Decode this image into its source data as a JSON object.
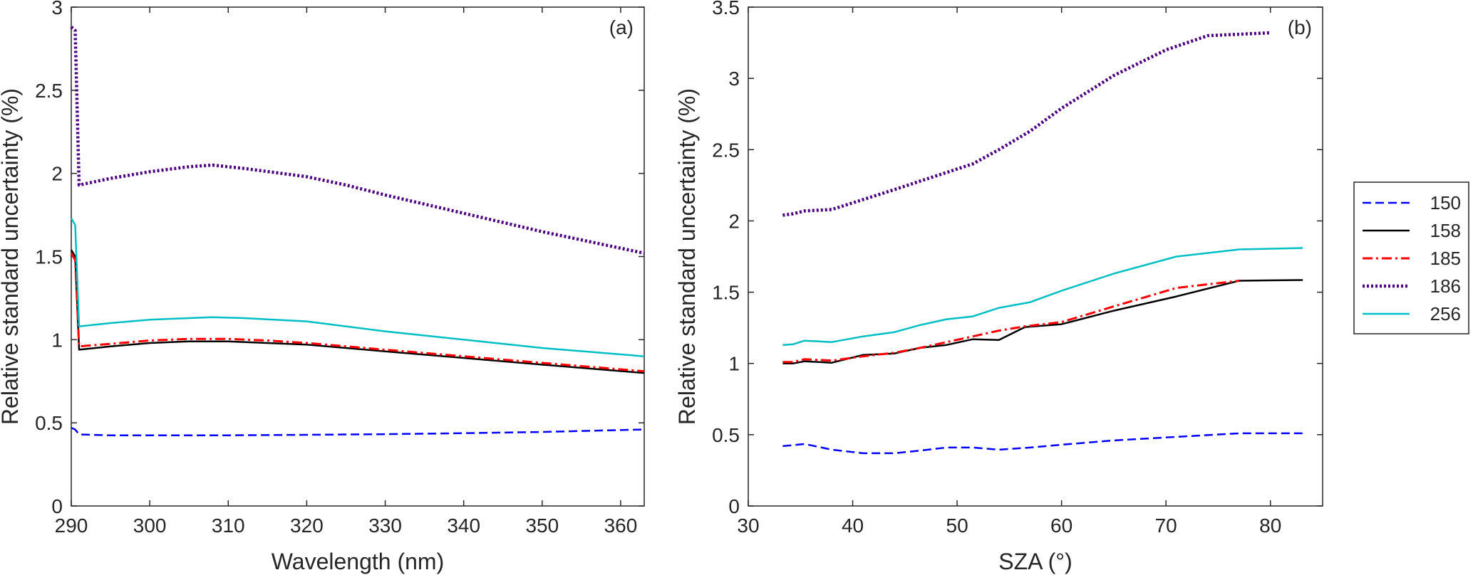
{
  "figure": {
    "legend_entries": [
      {
        "label": "150",
        "color": "#0000FF",
        "dash": "dashed"
      },
      {
        "label": "158",
        "color": "#000000",
        "dash": "solid"
      },
      {
        "label": "185",
        "color": "#FF0000",
        "dash": "dashdot"
      },
      {
        "label": "186",
        "color": "#4B0082",
        "dash": "dotted"
      },
      {
        "label": "256",
        "color": "#00BFC4",
        "dash": "solid"
      }
    ]
  },
  "chart_data": [
    {
      "type": "line",
      "panel": "(a)",
      "xlabel": "Wavelength (nm)",
      "ylabel": "Relative standard uncertainty (%)",
      "xlim": [
        290,
        363
      ],
      "ylim": [
        0,
        3
      ],
      "xticks": [
        "290",
        "300",
        "310",
        "320",
        "330",
        "340",
        "350",
        "360"
      ],
      "yticks": [
        "0",
        "0.5",
        "1",
        "1.5",
        "2",
        "2.5",
        "3"
      ],
      "grid": false,
      "series": [
        {
          "name": "150",
          "color": "#0000FF",
          "dash": "dashed",
          "x": [
            290,
            290.5,
            291,
            295,
            300,
            305,
            310,
            320,
            330,
            340,
            350,
            363
          ],
          "y": [
            0.47,
            0.46,
            0.43,
            0.425,
            0.425,
            0.425,
            0.425,
            0.428,
            0.432,
            0.438,
            0.445,
            0.46
          ]
        },
        {
          "name": "158",
          "color": "#000000",
          "dash": "solid",
          "x": [
            290,
            290.5,
            291,
            295,
            300,
            305,
            310,
            315,
            320,
            325,
            330,
            340,
            350,
            363
          ],
          "y": [
            1.54,
            1.5,
            0.94,
            0.96,
            0.98,
            0.99,
            0.99,
            0.98,
            0.97,
            0.95,
            0.93,
            0.89,
            0.85,
            0.8
          ]
        },
        {
          "name": "185",
          "color": "#FF0000",
          "dash": "dashdot",
          "x": [
            290,
            290.5,
            291,
            295,
            300,
            305,
            310,
            315,
            320,
            325,
            330,
            340,
            350,
            363
          ],
          "y": [
            1.52,
            1.48,
            0.96,
            0.975,
            0.995,
            1.005,
            1.005,
            0.995,
            0.98,
            0.96,
            0.94,
            0.9,
            0.86,
            0.81
          ]
        },
        {
          "name": "186",
          "color": "#4B0082",
          "dash": "dotted",
          "x": [
            290,
            290.5,
            291,
            295,
            300,
            305,
            308,
            312,
            320,
            325,
            330,
            340,
            350,
            363
          ],
          "y": [
            2.88,
            2.86,
            1.93,
            1.97,
            2.01,
            2.04,
            2.05,
            2.03,
            1.98,
            1.93,
            1.87,
            1.76,
            1.65,
            1.52
          ]
        },
        {
          "name": "256",
          "color": "#00BFC4",
          "dash": "solid",
          "x": [
            290,
            290.5,
            291,
            295,
            300,
            305,
            308,
            312,
            320,
            325,
            330,
            340,
            350,
            363
          ],
          "y": [
            1.73,
            1.69,
            1.08,
            1.1,
            1.12,
            1.13,
            1.135,
            1.13,
            1.11,
            1.08,
            1.05,
            1.0,
            0.95,
            0.9
          ]
        }
      ]
    },
    {
      "type": "line",
      "panel": "(b)",
      "xlabel": "SZA (°)",
      "ylabel": "Relative standard uncertainty (%)",
      "xlim": [
        30,
        85
      ],
      "ylim": [
        0,
        3.5
      ],
      "xticks": [
        "30",
        "40",
        "50",
        "60",
        "70",
        "80"
      ],
      "yticks": [
        "0",
        "0.5",
        "1",
        "1.5",
        "2",
        "2.5",
        "3",
        "3.5"
      ],
      "grid": false,
      "series": [
        {
          "name": "150",
          "color": "#0000FF",
          "dash": "dashed",
          "x": [
            33.3,
            35.4,
            38,
            41,
            44,
            46,
            49,
            51.5,
            54,
            57,
            60,
            65,
            71,
            77,
            83.1
          ],
          "y": [
            0.42,
            0.435,
            0.395,
            0.37,
            0.37,
            0.385,
            0.41,
            0.41,
            0.395,
            0.41,
            0.43,
            0.46,
            0.485,
            0.51,
            0.51
          ]
        },
        {
          "name": "158",
          "color": "#000000",
          "dash": "solid",
          "x": [
            33.3,
            34.3,
            35.4,
            38,
            41,
            44,
            46.5,
            49,
            51.5,
            54,
            56.5,
            60,
            65,
            71,
            77,
            83.1
          ],
          "y": [
            1.0,
            1.0,
            1.015,
            1.005,
            1.06,
            1.07,
            1.11,
            1.13,
            1.17,
            1.165,
            1.255,
            1.275,
            1.37,
            1.47,
            1.58,
            1.585
          ]
        },
        {
          "name": "185",
          "color": "#FF0000",
          "dash": "dashdot",
          "x": [
            33.3,
            34.3,
            35.4,
            38,
            41,
            44,
            46.5,
            49,
            51.5,
            54,
            56.5,
            60,
            65,
            71,
            77
          ],
          "y": [
            1.01,
            1.01,
            1.03,
            1.02,
            1.05,
            1.075,
            1.11,
            1.15,
            1.19,
            1.23,
            1.26,
            1.29,
            1.4,
            1.53,
            1.58
          ]
        },
        {
          "name": "186",
          "color": "#4B0082",
          "dash": "dotted",
          "x": [
            33.3,
            34.3,
            35.4,
            38,
            41,
            44,
            46.5,
            49,
            51.5,
            54,
            57,
            60,
            65,
            70,
            74,
            77,
            80
          ],
          "y": [
            2.04,
            2.05,
            2.07,
            2.08,
            2.15,
            2.22,
            2.28,
            2.34,
            2.4,
            2.5,
            2.63,
            2.79,
            3.02,
            3.2,
            3.3,
            3.31,
            3.32
          ]
        },
        {
          "name": "256",
          "color": "#00BFC4",
          "dash": "solid",
          "x": [
            33.3,
            34.3,
            35.4,
            38,
            41,
            44,
            46.5,
            49,
            51.5,
            54,
            57,
            60,
            65,
            71,
            77,
            83.1
          ],
          "y": [
            1.13,
            1.135,
            1.16,
            1.15,
            1.19,
            1.22,
            1.27,
            1.31,
            1.33,
            1.39,
            1.43,
            1.51,
            1.63,
            1.75,
            1.8,
            1.81
          ]
        }
      ]
    }
  ]
}
